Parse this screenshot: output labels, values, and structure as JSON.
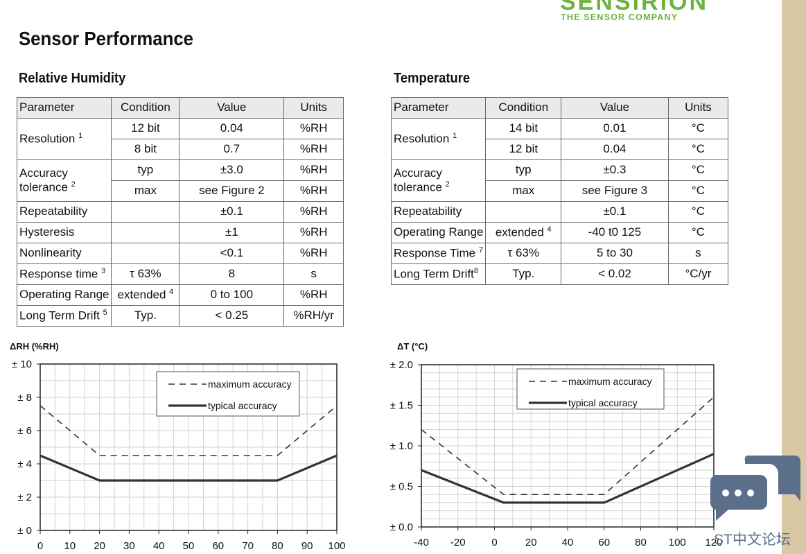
{
  "brand": {
    "name": "SENSIRION",
    "tagline": "THE SENSOR COMPANY",
    "color": "#6db33f"
  },
  "page": {
    "title": "Sensor Performance"
  },
  "rh_table": {
    "title": "Relative Humidity",
    "headers": [
      "Parameter",
      "Condition",
      "Value",
      "Units"
    ],
    "resolution": {
      "label": "Resolution",
      "note": "1",
      "rows": [
        {
          "condition": "12 bit",
          "value": "0.04",
          "unit": "%RH"
        },
        {
          "condition": "8 bit",
          "value": "0.7",
          "unit": "%RH"
        }
      ]
    },
    "accuracy": {
      "label_line1": "Accuracy",
      "label_line2": "tolerance",
      "note": "2",
      "rows": [
        {
          "condition": "typ",
          "value": "±3.0",
          "unit": "%RH"
        },
        {
          "condition": "max",
          "value": "see Figure 2",
          "unit": "%RH"
        }
      ]
    },
    "repeatability": {
      "label": "Repeatability",
      "condition": "",
      "value": "±0.1",
      "unit": "%RH"
    },
    "hysteresis": {
      "label": "Hysteresis",
      "condition": "",
      "value": "±1",
      "unit": "%RH"
    },
    "nonlinearity": {
      "label": "Nonlinearity",
      "condition": "",
      "value": "<0.1",
      "unit": "%RH"
    },
    "response": {
      "label": "Response time",
      "note": "3",
      "condition": "τ 63%",
      "value": "8",
      "unit": "s"
    },
    "operating": {
      "label": "Operating Range",
      "condition": "extended",
      "cond_note": "4",
      "value": "0 to 100",
      "unit": "%RH"
    },
    "drift": {
      "label": "Long Term Drift",
      "note": "5",
      "condition": "Typ.",
      "value": "< 0.25",
      "unit": "%RH/yr"
    }
  },
  "temp_table": {
    "title": "Temperature",
    "headers": [
      "Parameter",
      "Condition",
      "Value",
      "Units"
    ],
    "resolution": {
      "label": "Resolution",
      "note": "1",
      "rows": [
        {
          "condition": "14 bit",
          "value": "0.01",
          "unit": "°C"
        },
        {
          "condition": "12 bit",
          "value": "0.04",
          "unit": "°C"
        }
      ]
    },
    "accuracy": {
      "label_line1": "Accuracy",
      "label_line2": "tolerance",
      "note": "2",
      "rows": [
        {
          "condition": "typ",
          "value": "±0.3",
          "unit": "°C"
        },
        {
          "condition": "max",
          "value": "see Figure 3",
          "unit": "°C"
        }
      ]
    },
    "repeatability": {
      "label": "Repeatability",
      "condition": "",
      "value": "±0.1",
      "unit": "°C"
    },
    "operating": {
      "label": "Operating Range",
      "condition": "extended",
      "cond_note": "4",
      "value": "-40 t0 125",
      "unit": "°C"
    },
    "response": {
      "label": "Response Time",
      "note": "7",
      "condition": "τ 63%",
      "value": "5 to 30",
      "unit": "s"
    },
    "drift": {
      "label": "Long Term Drift",
      "note": "8",
      "condition": "Typ.",
      "value": "< 0.02",
      "unit": "°C/yr"
    }
  },
  "chart_data": [
    {
      "type": "line",
      "title": "",
      "ylabel": "ΔRH (%RH)",
      "xlabel": "",
      "xlim": [
        0,
        100
      ],
      "ylim": [
        0,
        10
      ],
      "xticks": [
        "0",
        "10",
        "20",
        "30",
        "40",
        "50",
        "60",
        "70",
        "80",
        "90",
        "100"
      ],
      "xtick_values": [
        0,
        10,
        20,
        30,
        40,
        50,
        60,
        70,
        80,
        90,
        100
      ],
      "yticks": [
        "± 0",
        "± 2",
        "± 4",
        "± 6",
        "± 8",
        "± 10"
      ],
      "ytick_values": [
        0,
        2,
        4,
        6,
        8,
        10
      ],
      "grid": true,
      "legend": "top-right",
      "series": [
        {
          "name": "maximum accuracy",
          "style": "dashed",
          "color": "#333333",
          "points": [
            [
              0,
              7.5
            ],
            [
              20,
              4.5
            ],
            [
              80,
              4.5
            ],
            [
              100,
              7.5
            ]
          ]
        },
        {
          "name": "typical accuracy",
          "style": "solid",
          "color": "#333333",
          "points": [
            [
              0,
              4.5
            ],
            [
              20,
              3
            ],
            [
              80,
              3
            ],
            [
              100,
              4.5
            ]
          ]
        }
      ]
    },
    {
      "type": "line",
      "title": "",
      "ylabel": "ΔT (°C)",
      "xlabel": "",
      "xlim": [
        -40,
        120
      ],
      "ylim": [
        0,
        2
      ],
      "xticks": [
        "-40",
        "-20",
        "0",
        "20",
        "40",
        "60",
        "80",
        "100",
        "120"
      ],
      "xtick_values": [
        -40,
        -20,
        0,
        20,
        40,
        60,
        80,
        100,
        120
      ],
      "yticks": [
        "± 0.0",
        "± 0.5",
        "± 1.0",
        "± 1.5",
        "± 2.0"
      ],
      "ytick_values": [
        0,
        0.5,
        1,
        1.5,
        2
      ],
      "grid": true,
      "legend": "top-center",
      "series": [
        {
          "name": "maximum accuracy",
          "style": "dashed",
          "color": "#333333",
          "points": [
            [
              -40,
              1.2
            ],
            [
              5,
              0.4
            ],
            [
              60,
              0.4
            ],
            [
              120,
              1.6
            ]
          ]
        },
        {
          "name": "typical accuracy",
          "style": "solid",
          "color": "#333333",
          "points": [
            [
              -40,
              0.7
            ],
            [
              5,
              0.3
            ],
            [
              60,
              0.3
            ],
            [
              120,
              0.9
            ]
          ]
        }
      ]
    }
  ],
  "overlay": {
    "watermark": "ST中文论坛",
    "chat_icon": "chat-bubble-icon",
    "chat_color": "#5b6e8a"
  }
}
